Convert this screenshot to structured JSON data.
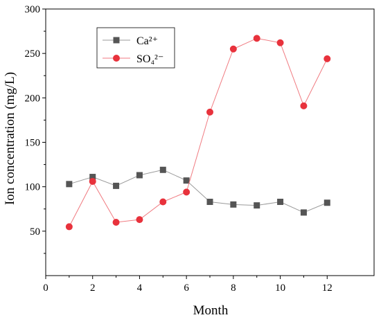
{
  "chart_data": {
    "type": "line",
    "title": "",
    "xlabel": "Month",
    "ylabel": "Ion concentration (mg/L)",
    "xlim": [
      0,
      14
    ],
    "ylim": [
      0,
      300
    ],
    "xticks": [
      0,
      2,
      4,
      6,
      8,
      10,
      12
    ],
    "yticks": [
      50,
      100,
      150,
      200,
      250,
      300
    ],
    "x": [
      1,
      2,
      3,
      4,
      5,
      6,
      7,
      8,
      9,
      10,
      11,
      12
    ],
    "series": [
      {
        "name": "Ca²⁺",
        "marker": "square",
        "color": "#555555",
        "line_color": "#9a9a9a",
        "values": [
          103,
          111,
          101,
          113,
          119,
          107,
          83,
          80,
          79,
          83,
          71,
          82
        ]
      },
      {
        "name": "SO₄²⁻",
        "marker": "circle",
        "color": "#e8323c",
        "line_color": "#f07a80",
        "values": [
          55,
          106,
          60,
          63,
          83,
          94,
          184,
          255,
          267,
          262,
          191,
          244
        ]
      }
    ],
    "legend_position": "top-left",
    "grid": false
  }
}
